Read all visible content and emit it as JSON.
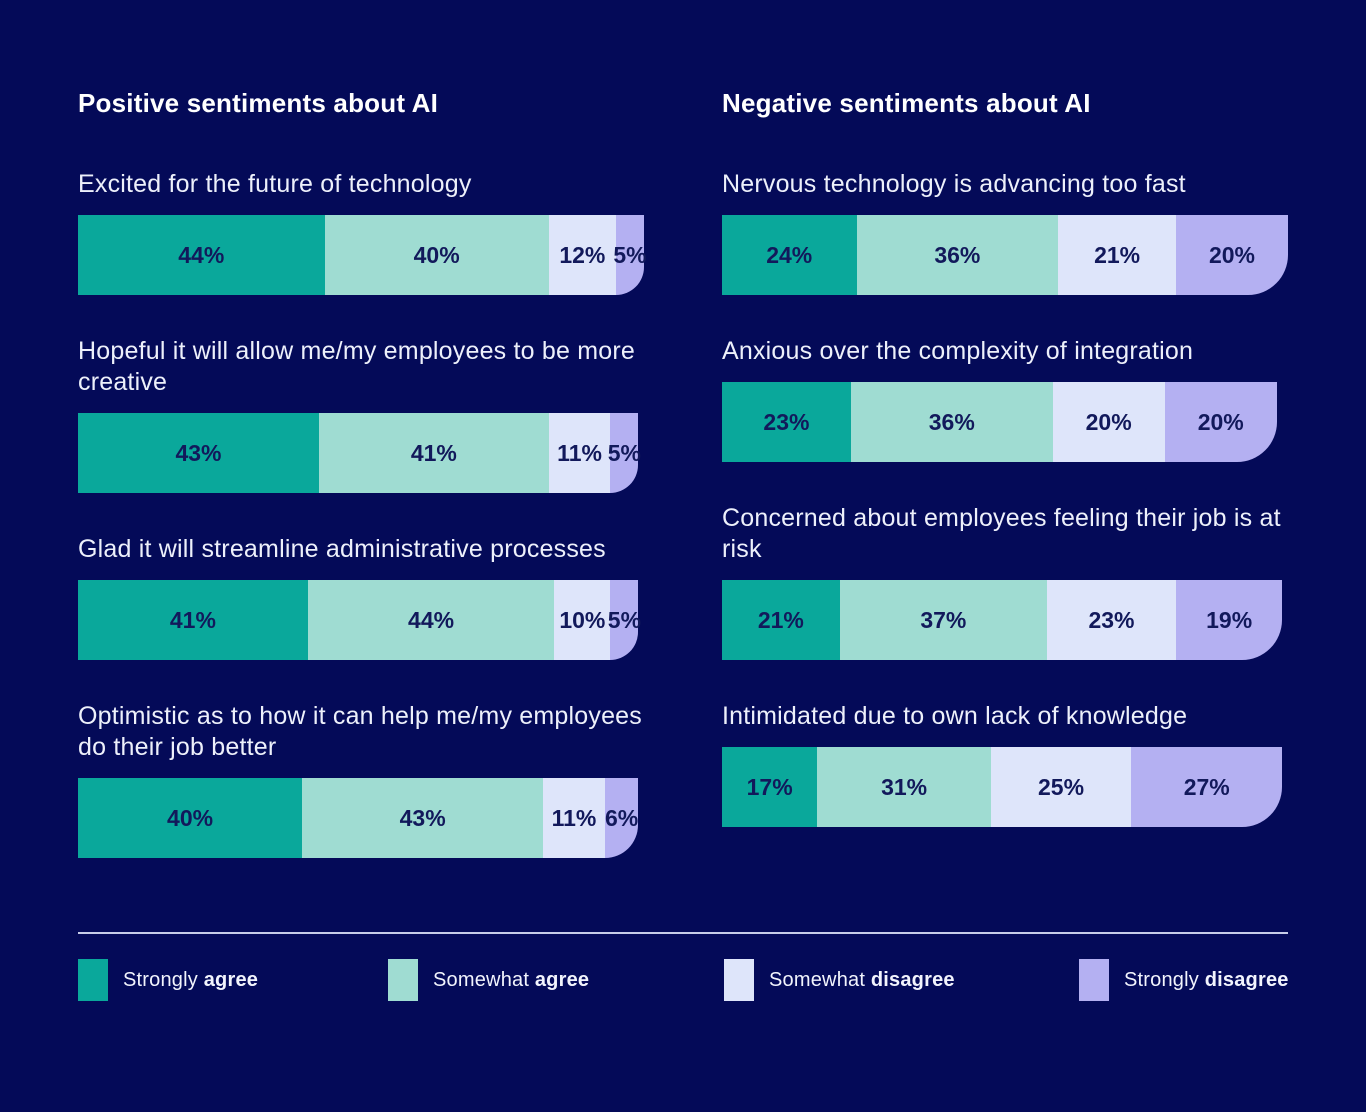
{
  "theme": {
    "background": "#040A58",
    "title_color": "#FFFFFF",
    "label_color": "#EDF0FB",
    "value_color": "#12195B",
    "divider_color": "#C7CDE9"
  },
  "chart_data": {
    "type": "bar",
    "variant": "horizontal-stacked",
    "unit": "%",
    "grid": false,
    "legend_position": "bottom",
    "series_labels": [
      "Strongly agree",
      "Somewhat agree",
      "Somewhat disagree",
      "Strongly disagree"
    ],
    "colors": [
      "#0AA89B",
      "#9FDCD2",
      "#DEE5FA",
      "#B4B0F2"
    ],
    "groups": [
      {
        "title": "Positive sentiments about AI",
        "items": [
          {
            "label": "Excited for the future of technology",
            "values": [
              44,
              40,
              12,
              5
            ]
          },
          {
            "label": "Hopeful it will allow me/my employees to be more creative",
            "values": [
              43,
              41,
              11,
              5
            ]
          },
          {
            "label": "Glad it will streamline administrative processes",
            "values": [
              41,
              44,
              10,
              5
            ]
          },
          {
            "label": "Optimistic as to how it can help me/my employees do their job better",
            "values": [
              40,
              43,
              11,
              6
            ]
          }
        ]
      },
      {
        "title": "Negative sentiments about AI",
        "items": [
          {
            "label": "Nervous technology is advancing too fast",
            "values": [
              24,
              36,
              21,
              20
            ]
          },
          {
            "label": "Anxious over the complexity of integration",
            "values": [
              23,
              36,
              20,
              20
            ]
          },
          {
            "label": "Concerned about employees feeling their job is at risk",
            "values": [
              21,
              37,
              23,
              19
            ]
          },
          {
            "label": "Intimidated due to own lack of knowledge",
            "values": [
              17,
              31,
              25,
              27
            ]
          }
        ]
      }
    ]
  },
  "legend": {
    "items": [
      {
        "prefix": "Strongly ",
        "emphasis": "agree",
        "color": "#0AA89B"
      },
      {
        "prefix": "Somewhat ",
        "emphasis": "agree",
        "color": "#9FDCD2"
      },
      {
        "prefix": "Somewhat ",
        "emphasis": "disagree",
        "color": "#DEE5FA"
      },
      {
        "prefix": "Strongly ",
        "emphasis": "disagree",
        "color": "#B4B0F2"
      }
    ]
  }
}
